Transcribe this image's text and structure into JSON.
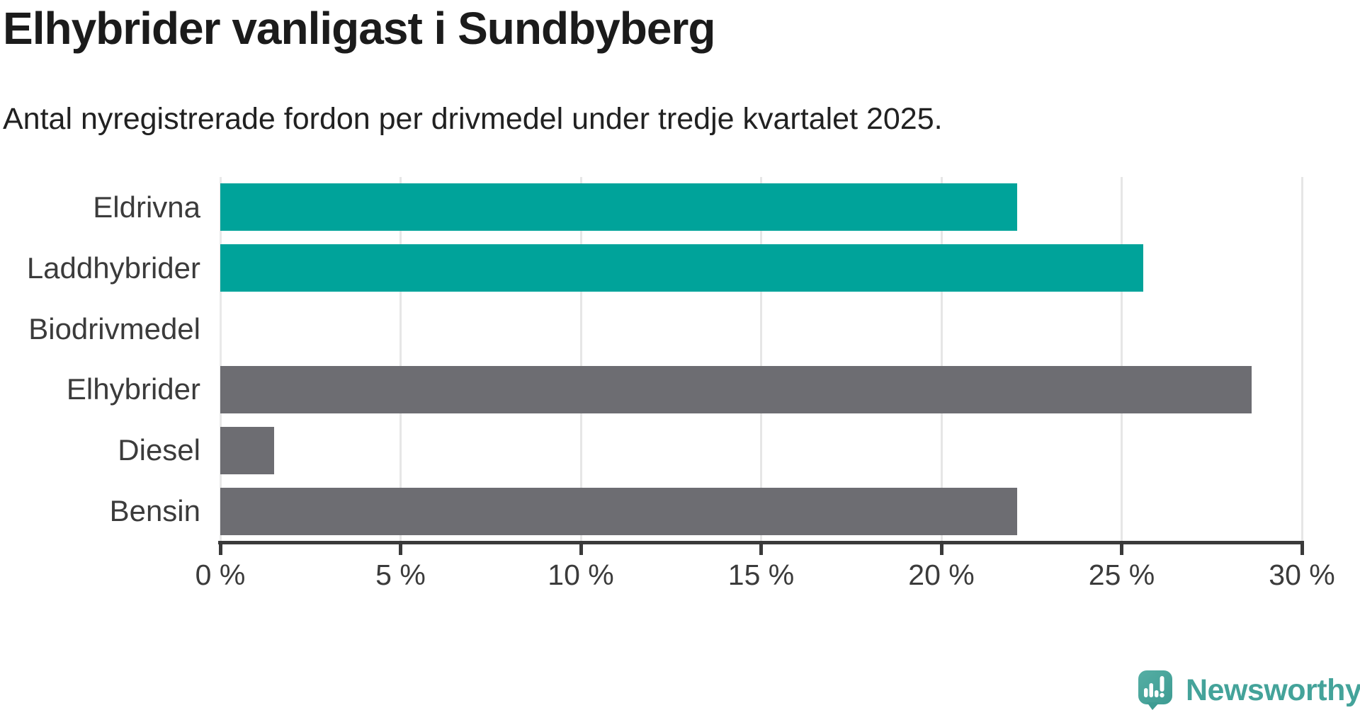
{
  "header": {
    "title": "Elhybrider vanligast i Sundbyberg",
    "subtitle": "Antal nyregistrerade fordon per drivmedel under tredje kvartalet 2025."
  },
  "chart_data": {
    "type": "bar",
    "orientation": "horizontal",
    "title": "Elhybrider vanligast i Sundbyberg",
    "subtitle": "Antal nyregistrerade fordon per drivmedel under tredje kvartalet 2025.",
    "categories": [
      "Eldrivna",
      "Laddhybrider",
      "Biodrivmedel",
      "Elhybrider",
      "Diesel",
      "Bensin"
    ],
    "values": [
      22.1,
      25.6,
      0,
      28.6,
      1.5,
      22.1
    ],
    "unit": "%",
    "bar_colors": [
      "#00a39a",
      "#00a39a",
      "#6d6d72",
      "#6d6d72",
      "#6d6d72",
      "#6d6d72"
    ],
    "highlight_color": "#00a39a",
    "default_color": "#6d6d72",
    "xlabel": "",
    "ylabel": "",
    "xlim": [
      0,
      30
    ],
    "xticks": [
      0,
      5,
      10,
      15,
      20,
      25,
      30
    ],
    "xtick_labels": [
      "0 %",
      "5 %",
      "10 %",
      "15 %",
      "20 %",
      "25 %",
      "30 %"
    ],
    "grid": true,
    "legend": "none"
  },
  "branding": {
    "logo_text": "Newsworthy",
    "logo_color": "#44a39a",
    "logo_icon": "speech-bubble-bar-chart-icon"
  }
}
